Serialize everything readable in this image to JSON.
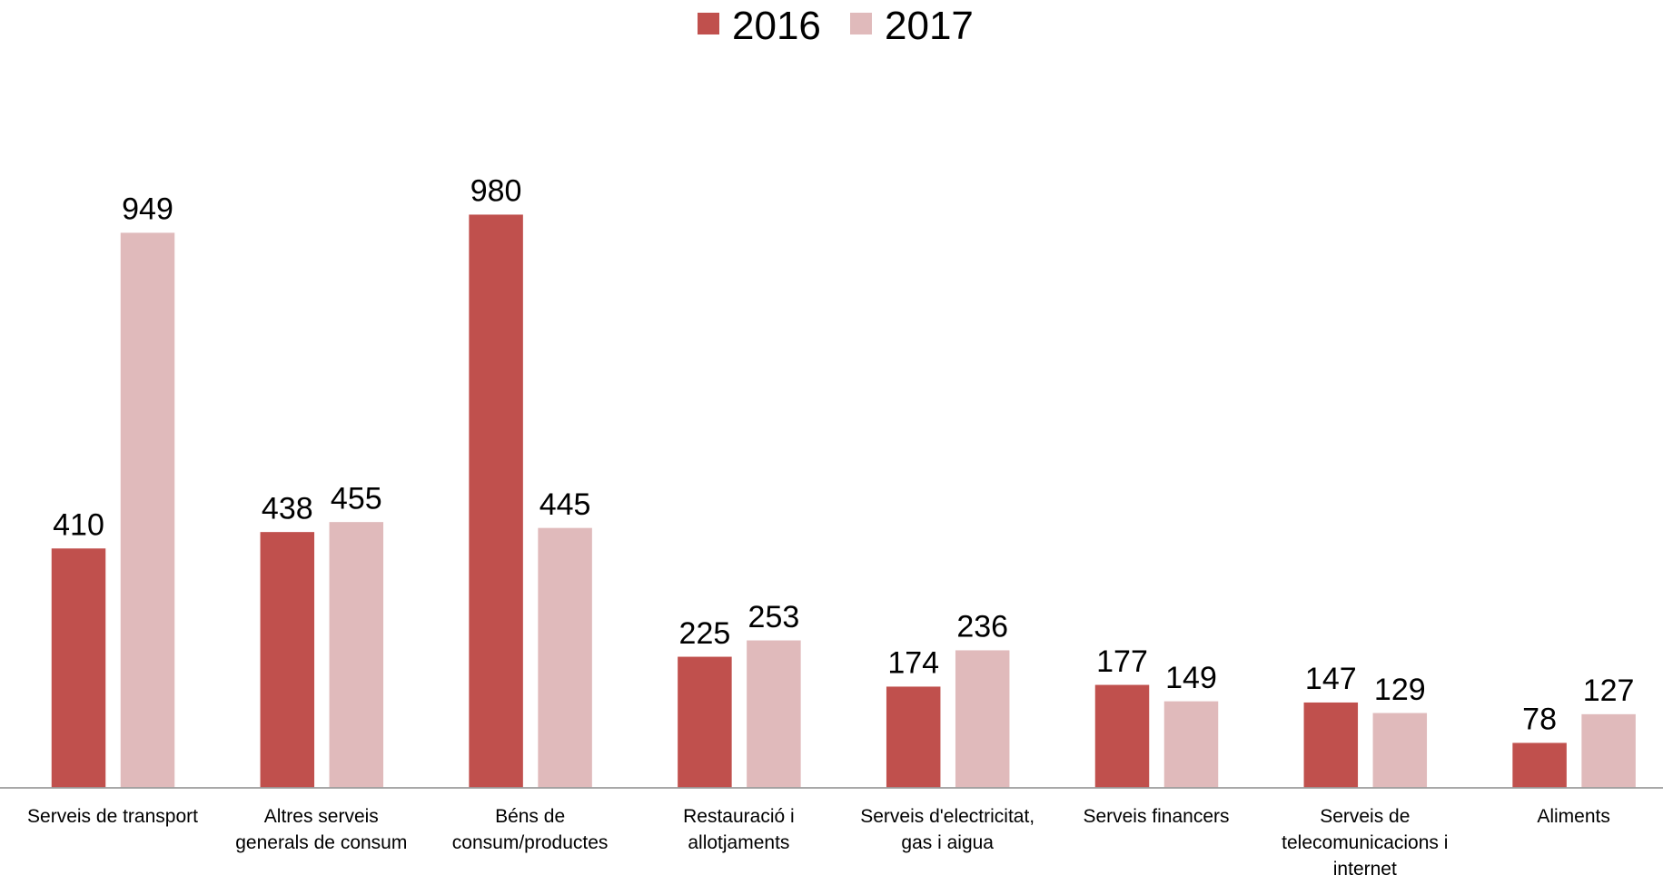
{
  "chart_data": {
    "type": "bar",
    "categories": [
      "Serveis de transport",
      "Altres serveis generals de consum",
      "Béns de consum/productes",
      "Restauració i allotjaments",
      "Serveis d'electricitat, gas i aigua",
      "Serveis financers",
      "Serveis de telecomunicacions i internet",
      "Aliments"
    ],
    "category_lines": [
      [
        "Serveis de transport"
      ],
      [
        "Altres serveis",
        "generals de consum"
      ],
      [
        "Béns de",
        "consum/productes"
      ],
      [
        "Restauració i",
        "allotjaments"
      ],
      [
        "Serveis d'electricitat,",
        "gas i aigua"
      ],
      [
        "Serveis financers"
      ],
      [
        "Serveis de",
        "telecomunicacions i",
        "internet"
      ],
      [
        "Aliments"
      ]
    ],
    "series": [
      {
        "name": "2016",
        "color": "#C0504D",
        "values": [
          410,
          438,
          980,
          225,
          174,
          177,
          147,
          78
        ]
      },
      {
        "name": "2017",
        "color": "#E0BABB",
        "values": [
          949,
          455,
          445,
          253,
          236,
          149,
          129,
          127
        ]
      }
    ],
    "ylim": [
      0,
      1000
    ],
    "grid": false,
    "legend_position": "top-center",
    "data_labels": true,
    "title": "",
    "xlabel": "",
    "ylabel": ""
  }
}
